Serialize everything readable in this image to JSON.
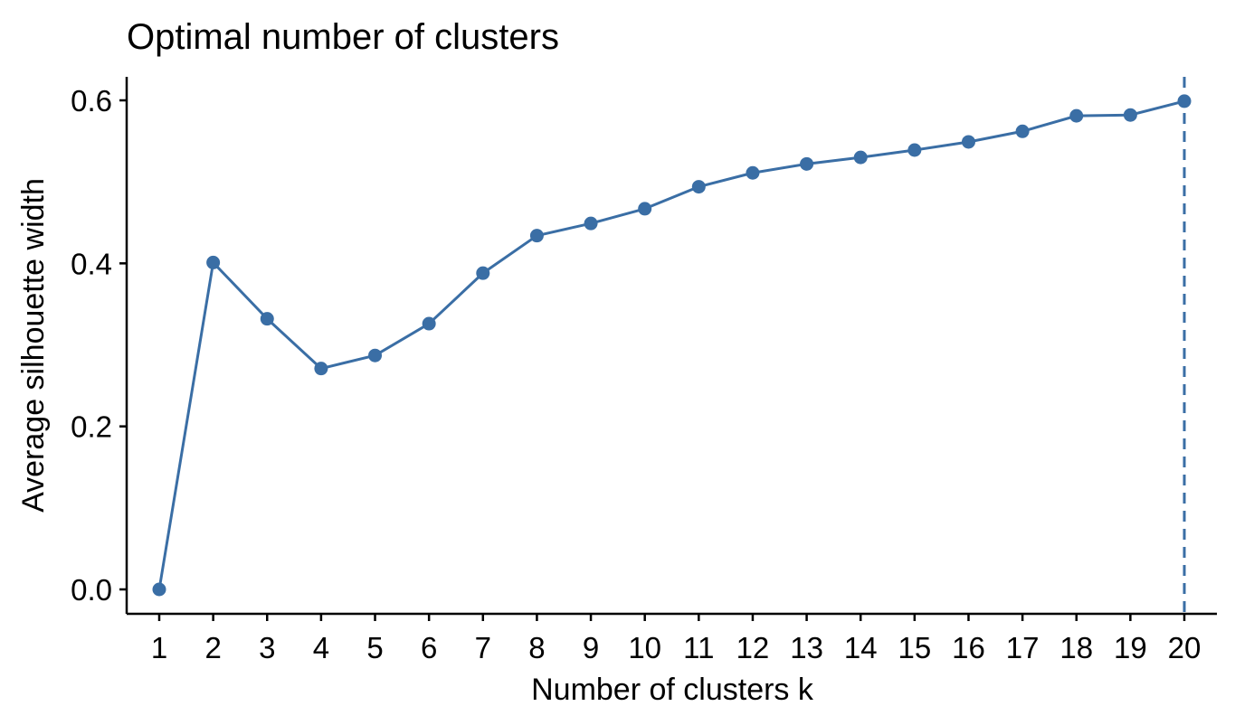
{
  "chart_data": {
    "type": "line",
    "title": "Optimal number of clusters",
    "xlabel": "Number of clusters k",
    "ylabel": "Average silhouette width",
    "categories": [
      "1",
      "2",
      "3",
      "4",
      "5",
      "6",
      "7",
      "8",
      "9",
      "10",
      "11",
      "12",
      "13",
      "14",
      "15",
      "16",
      "17",
      "18",
      "19",
      "20"
    ],
    "series": [
      {
        "values": [
          0.0,
          0.401,
          0.332,
          0.271,
          0.287,
          0.326,
          0.388,
          0.434,
          0.449,
          0.467,
          0.494,
          0.511,
          0.522,
          0.53,
          0.539,
          0.549,
          0.562,
          0.581,
          0.582,
          0.599
        ]
      }
    ],
    "optimal_k": 20,
    "yticks": [
      "0.0",
      "0.2",
      "0.4",
      "0.6"
    ],
    "ytick_values": [
      0.0,
      0.2,
      0.4,
      0.6
    ],
    "ylim": [
      -0.03,
      0.63
    ],
    "grid": false,
    "legend": "none",
    "colors": {
      "series": "#3a6ea5",
      "axis": "#000000"
    }
  }
}
